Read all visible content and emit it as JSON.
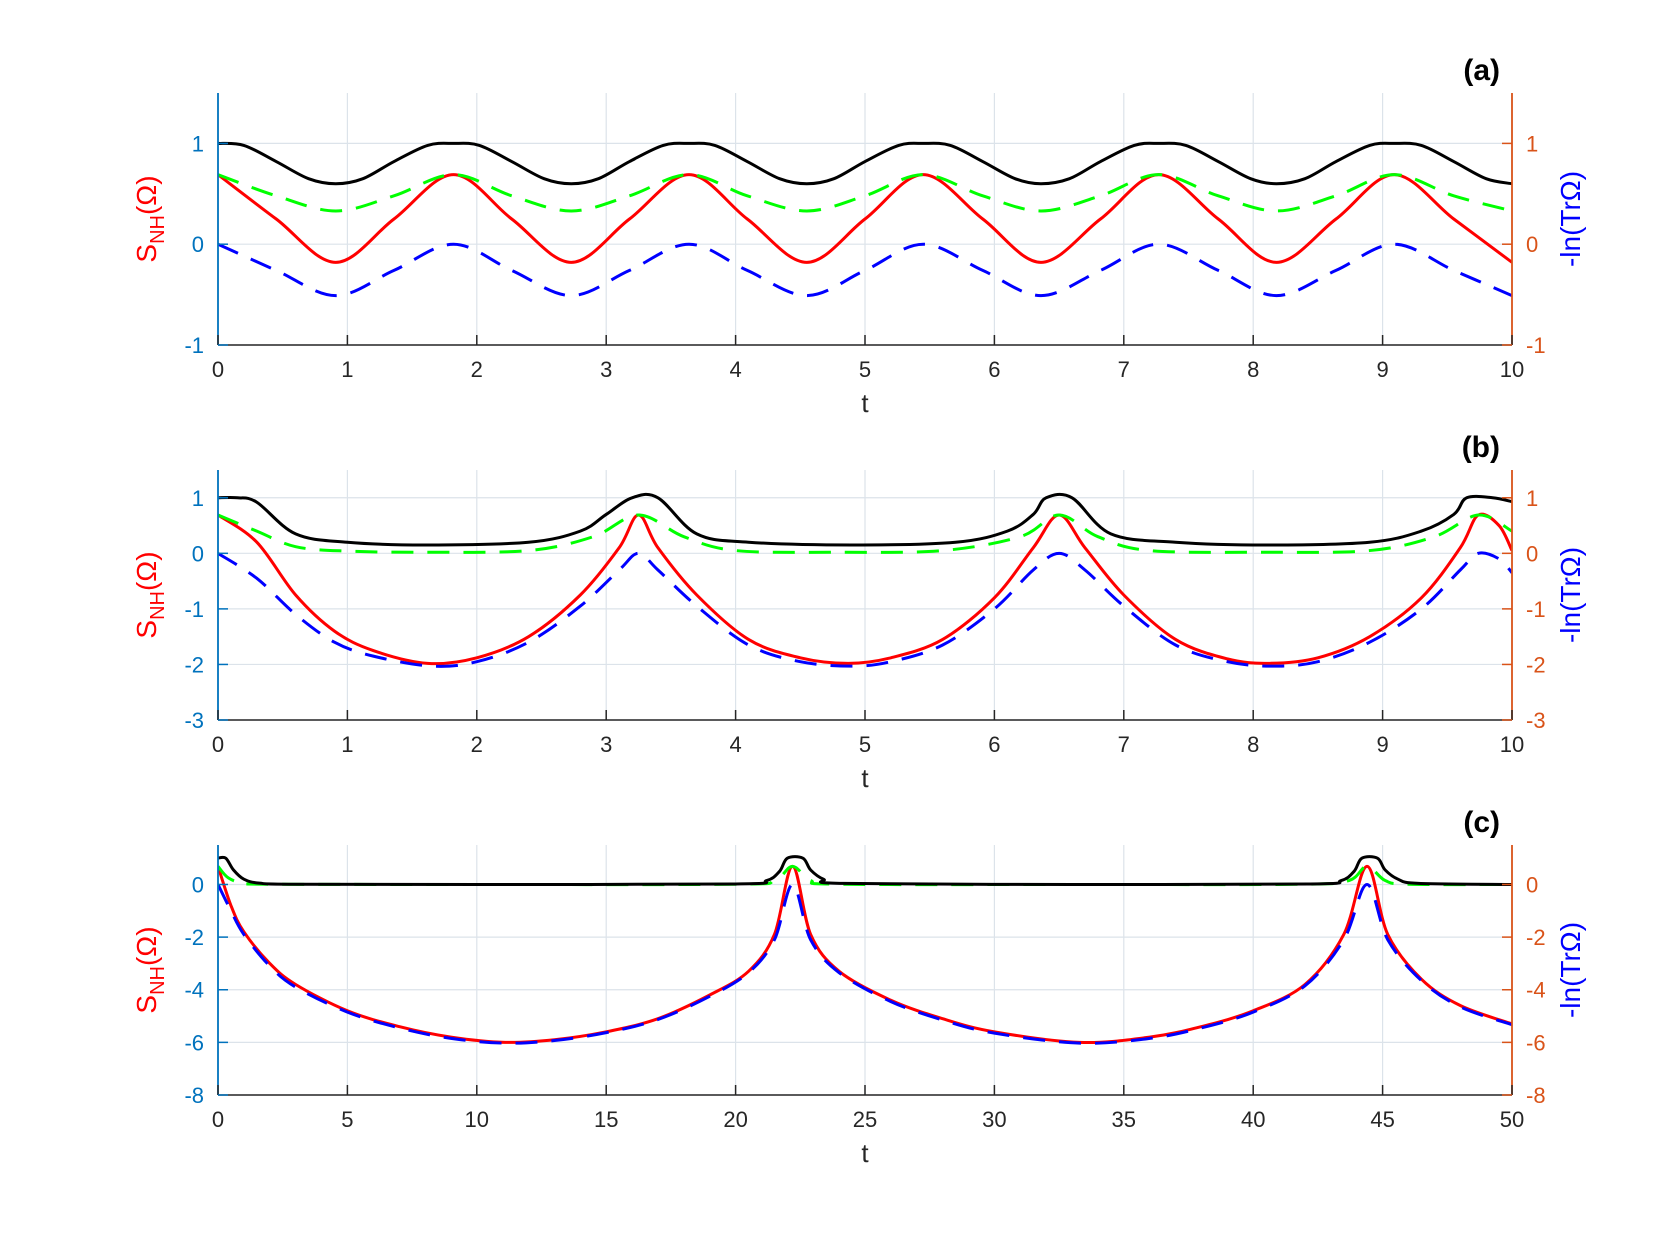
{
  "colors": {
    "left_axis": "#0072BD",
    "right_axis": "#D95319",
    "grid": "#DCE3EA",
    "s_nh": "#FF0000",
    "neg_ln_tr": "#0000FF",
    "green_dashed": "#00FF00",
    "black_solid": "#000000"
  },
  "chart_data": [
    {
      "type": "line",
      "panel_label": "(a)",
      "xlabel": "t",
      "ylabel_left": {
        "main": "S",
        "sub": "NH",
        "tail": "(Ω)"
      },
      "ylabel_right": "-ln(TrΩ)",
      "xlim": [
        0,
        10
      ],
      "ylim": [
        -1,
        1.5
      ],
      "xticks": [
        "0",
        "1",
        "2",
        "3",
        "4",
        "5",
        "6",
        "7",
        "8",
        "9",
        "10"
      ],
      "yticks_left": [
        "-1",
        "0",
        "1"
      ],
      "yticks_right": [
        "-1",
        "0",
        "1"
      ],
      "ytick_values": [
        -1,
        0,
        1
      ],
      "grid": true,
      "series": [
        {
          "style": "red-solid",
          "t": [
            0,
            0.45,
            0.91,
            1.36,
            1.82,
            2.27,
            2.73,
            3.18,
            3.64,
            4.09,
            4.55,
            5.0,
            5.45,
            5.91,
            6.36,
            6.82,
            7.27,
            7.73,
            8.18,
            8.64,
            9.09,
            9.55,
            10
          ],
          "y": [
            0.69,
            0.25,
            -0.18,
            0.25,
            0.69,
            0.25,
            -0.18,
            0.25,
            0.69,
            0.25,
            -0.18,
            0.25,
            0.69,
            0.25,
            -0.18,
            0.25,
            0.69,
            0.25,
            -0.18,
            0.25,
            0.69,
            0.25,
            -0.18
          ]
        },
        {
          "style": "blue-dashed",
          "t": [
            0,
            0.45,
            0.91,
            1.36,
            1.82,
            2.27,
            2.73,
            3.18,
            3.64,
            4.09,
            4.55,
            5.0,
            5.45,
            5.91,
            6.36,
            6.82,
            7.27,
            7.73,
            8.18,
            8.64,
            9.09,
            9.55,
            10
          ],
          "y": [
            0,
            -0.26,
            -0.51,
            -0.26,
            0,
            -0.26,
            -0.51,
            -0.26,
            0,
            -0.26,
            -0.51,
            -0.26,
            0,
            -0.26,
            -0.51,
            -0.26,
            0,
            -0.26,
            -0.51,
            -0.26,
            0,
            -0.26,
            -0.51
          ]
        },
        {
          "style": "green-dashed",
          "t": [
            0,
            0.45,
            0.91,
            1.36,
            1.82,
            2.27,
            2.73,
            3.18,
            3.64,
            4.09,
            4.55,
            5.0,
            5.45,
            5.91,
            6.36,
            6.82,
            7.27,
            7.73,
            8.18,
            8.64,
            9.09,
            9.55,
            10
          ],
          "y": [
            0.69,
            0.48,
            0.33,
            0.48,
            0.69,
            0.48,
            0.33,
            0.48,
            0.69,
            0.48,
            0.33,
            0.48,
            0.69,
            0.48,
            0.33,
            0.48,
            0.69,
            0.48,
            0.33,
            0.48,
            0.69,
            0.48,
            0.33
          ]
        },
        {
          "style": "black-solid",
          "t": [
            0,
            0.2,
            0.45,
            0.7,
            0.91,
            1.12,
            1.36,
            1.62,
            1.82,
            2.02,
            2.27,
            2.52,
            2.73,
            2.94,
            3.18,
            3.44,
            3.64,
            3.84,
            4.09,
            4.34,
            4.55,
            4.76,
            5.0,
            5.26,
            5.45,
            5.66,
            5.91,
            6.16,
            6.36,
            6.58,
            6.82,
            7.08,
            7.27,
            7.48,
            7.73,
            7.98,
            8.18,
            8.4,
            8.64,
            8.9,
            9.09,
            9.3,
            9.55,
            9.8,
            10
          ],
          "y": [
            1.0,
            0.98,
            0.82,
            0.65,
            0.6,
            0.65,
            0.82,
            0.98,
            1.0,
            0.98,
            0.82,
            0.65,
            0.6,
            0.65,
            0.82,
            0.98,
            1.0,
            0.98,
            0.82,
            0.65,
            0.6,
            0.65,
            0.82,
            0.98,
            1.0,
            0.98,
            0.82,
            0.65,
            0.6,
            0.65,
            0.82,
            0.98,
            1.0,
            0.98,
            0.82,
            0.65,
            0.6,
            0.65,
            0.82,
            0.98,
            1.0,
            0.98,
            0.82,
            0.65,
            0.6
          ]
        }
      ]
    },
    {
      "type": "line",
      "panel_label": "(b)",
      "xlabel": "t",
      "ylabel_left": {
        "main": "S",
        "sub": "NH",
        "tail": "(Ω)"
      },
      "ylabel_right": "-ln(TrΩ)",
      "xlim": [
        0,
        10
      ],
      "ylim": [
        -3,
        1.5
      ],
      "xticks": [
        "0",
        "1",
        "2",
        "3",
        "4",
        "5",
        "6",
        "7",
        "8",
        "9",
        "10"
      ],
      "yticks_left": [
        "-3",
        "-2",
        "-1",
        "0",
        "1"
      ],
      "yticks_right": [
        "-3",
        "-2",
        "-1",
        "0",
        "1"
      ],
      "ytick_values": [
        -3,
        -2,
        -1,
        0,
        1
      ],
      "grid": true,
      "series": [
        {
          "style": "red-solid",
          "t": [
            0,
            0.3,
            0.6,
            0.9,
            1.2,
            1.62,
            2.0,
            2.4,
            2.8,
            3.1,
            3.25,
            3.4,
            3.7,
            4.1,
            4.5,
            4.87,
            5.2,
            5.6,
            6.0,
            6.3,
            6.5,
            6.7,
            7.0,
            7.4,
            7.8,
            8.12,
            8.5,
            8.9,
            9.3,
            9.6,
            9.74,
            9.9,
            10
          ],
          "y": [
            0.69,
            0.2,
            -0.75,
            -1.4,
            -1.75,
            -1.98,
            -1.88,
            -1.5,
            -0.75,
            0.1,
            0.69,
            0.1,
            -0.75,
            -1.55,
            -1.88,
            -1.98,
            -1.88,
            -1.55,
            -0.8,
            0.1,
            0.69,
            0.1,
            -0.75,
            -1.55,
            -1.9,
            -1.98,
            -1.88,
            -1.5,
            -0.8,
            0.1,
            0.69,
            0.5,
            0.05
          ]
        },
        {
          "style": "blue-dashed",
          "t": [
            0,
            0.3,
            0.6,
            0.9,
            1.2,
            1.65,
            2.0,
            2.4,
            2.8,
            3.1,
            3.25,
            3.4,
            3.7,
            4.1,
            4.5,
            4.9,
            5.2,
            5.6,
            6.0,
            6.3,
            6.5,
            6.7,
            7.0,
            7.4,
            7.8,
            8.15,
            8.5,
            8.9,
            9.3,
            9.6,
            9.74,
            9.9,
            10
          ],
          "y": [
            0,
            -0.45,
            -1.1,
            -1.6,
            -1.85,
            -2.03,
            -1.95,
            -1.6,
            -0.95,
            -0.3,
            0,
            -0.3,
            -0.95,
            -1.65,
            -1.95,
            -2.03,
            -1.95,
            -1.65,
            -1.0,
            -0.3,
            0,
            -0.3,
            -0.95,
            -1.65,
            -1.95,
            -2.03,
            -1.95,
            -1.6,
            -1.0,
            -0.3,
            0,
            -0.1,
            -0.35
          ]
        },
        {
          "style": "green-dashed",
          "t": [
            0,
            0.3,
            0.6,
            1.0,
            1.6,
            2.4,
            2.9,
            3.25,
            3.6,
            4.0,
            4.8,
            5.6,
            6.2,
            6.5,
            6.8,
            7.2,
            8.1,
            8.9,
            9.4,
            9.74,
            10
          ],
          "y": [
            0.69,
            0.4,
            0.12,
            0.04,
            0.02,
            0.05,
            0.3,
            0.69,
            0.3,
            0.05,
            0.02,
            0.05,
            0.3,
            0.69,
            0.3,
            0.05,
            0.02,
            0.05,
            0.3,
            0.69,
            0.4
          ]
        },
        {
          "style": "black-solid",
          "t": [
            0,
            0.15,
            0.3,
            0.6,
            1.0,
            1.6,
            2.4,
            2.8,
            3.0,
            3.2,
            3.4,
            3.7,
            4.1,
            4.9,
            5.7,
            6.1,
            6.3,
            6.4,
            6.6,
            6.9,
            7.4,
            8.1,
            8.9,
            9.3,
            9.55,
            9.65,
            9.85,
            10
          ],
          "y": [
            1.0,
            1.0,
            0.92,
            0.35,
            0.2,
            0.15,
            0.2,
            0.4,
            0.7,
            1.0,
            1.0,
            0.35,
            0.2,
            0.15,
            0.2,
            0.4,
            0.7,
            1.0,
            1.0,
            0.35,
            0.2,
            0.15,
            0.2,
            0.4,
            0.7,
            1.0,
            1.0,
            0.93
          ]
        }
      ]
    },
    {
      "type": "line",
      "panel_label": "(c)",
      "xlabel": "t",
      "ylabel_left": {
        "main": "S",
        "sub": "NH",
        "tail": "(Ω)"
      },
      "ylabel_right": "-ln(TrΩ)",
      "xlim": [
        0,
        50
      ],
      "ylim": [
        -8,
        1.5
      ],
      "xticks": [
        "0",
        "5",
        "10",
        "15",
        "20",
        "25",
        "30",
        "35",
        "40",
        "45",
        "50"
      ],
      "yticks_left": [
        "-8",
        "-6",
        "-4",
        "-2",
        "0"
      ],
      "yticks_right": [
        "-8",
        "-6",
        "-4",
        "-2",
        "0"
      ],
      "ytick_values": [
        -8,
        -6,
        -4,
        -2,
        0
      ],
      "grid": true,
      "series": [
        {
          "style": "red-solid",
          "t": [
            0,
            0.5,
            1,
            2,
            3,
            5,
            7,
            9,
            11.1,
            13,
            15,
            17,
            19,
            20.5,
            21.5,
            22.2,
            22.9,
            24,
            26,
            28,
            30,
            33.3,
            36,
            38,
            40,
            42,
            43.5,
            44.4,
            45.2,
            46.5,
            48,
            50
          ],
          "y": [
            0.69,
            -0.8,
            -1.8,
            -3.0,
            -3.8,
            -4.8,
            -5.4,
            -5.8,
            -6.0,
            -5.9,
            -5.6,
            -5.1,
            -4.2,
            -3.3,
            -1.9,
            0.69,
            -1.9,
            -3.3,
            -4.4,
            -5.1,
            -5.6,
            -6.0,
            -5.8,
            -5.4,
            -4.8,
            -3.8,
            -1.9,
            0.69,
            -1.9,
            -3.6,
            -4.6,
            -5.3
          ]
        },
        {
          "style": "blue-dashed",
          "t": [
            0,
            0.5,
            1,
            2,
            3,
            5,
            7,
            9,
            11.1,
            13,
            15,
            17,
            19,
            20.5,
            21.5,
            22.2,
            22.9,
            24,
            26,
            28,
            30,
            33.3,
            36,
            38,
            40,
            42,
            43.5,
            44.4,
            45.2,
            46.5,
            48,
            50
          ],
          "y": [
            0,
            -1.0,
            -1.9,
            -3.1,
            -3.9,
            -4.85,
            -5.45,
            -5.85,
            -6.03,
            -5.93,
            -5.63,
            -5.13,
            -4.25,
            -3.35,
            -2.1,
            0,
            -2.1,
            -3.35,
            -4.45,
            -5.15,
            -5.65,
            -6.03,
            -5.85,
            -5.45,
            -4.85,
            -3.85,
            -2.1,
            0,
            -2.1,
            -3.65,
            -4.65,
            -5.33
          ]
        },
        {
          "style": "green-dashed",
          "t": [
            0,
            0.4,
            1,
            2,
            10,
            20,
            21.5,
            22.2,
            22.9,
            24,
            33,
            42,
            43.7,
            44.4,
            45.1,
            46,
            50
          ],
          "y": [
            0.69,
            0.25,
            0.05,
            0.01,
            0.0,
            0.01,
            0.15,
            0.69,
            0.15,
            0.01,
            0.0,
            0.01,
            0.15,
            0.69,
            0.15,
            0.01,
            0.0
          ]
        },
        {
          "style": "black-solid",
          "t": [
            0,
            0.3,
            0.6,
            1.0,
            1.6,
            3,
            10,
            20,
            21.2,
            21.7,
            22.0,
            22.6,
            22.9,
            23.4,
            24.2,
            33,
            42.2,
            43.4,
            43.9,
            44.2,
            44.8,
            45.1,
            45.6,
            46.4,
            50
          ],
          "y": [
            1.0,
            1.0,
            0.55,
            0.2,
            0.05,
            0.01,
            0.0,
            0.02,
            0.15,
            0.5,
            1.0,
            1.0,
            0.55,
            0.2,
            0.04,
            0.0,
            0.02,
            0.15,
            0.5,
            1.0,
            1.0,
            0.55,
            0.2,
            0.04,
            0.0
          ]
        }
      ]
    }
  ]
}
